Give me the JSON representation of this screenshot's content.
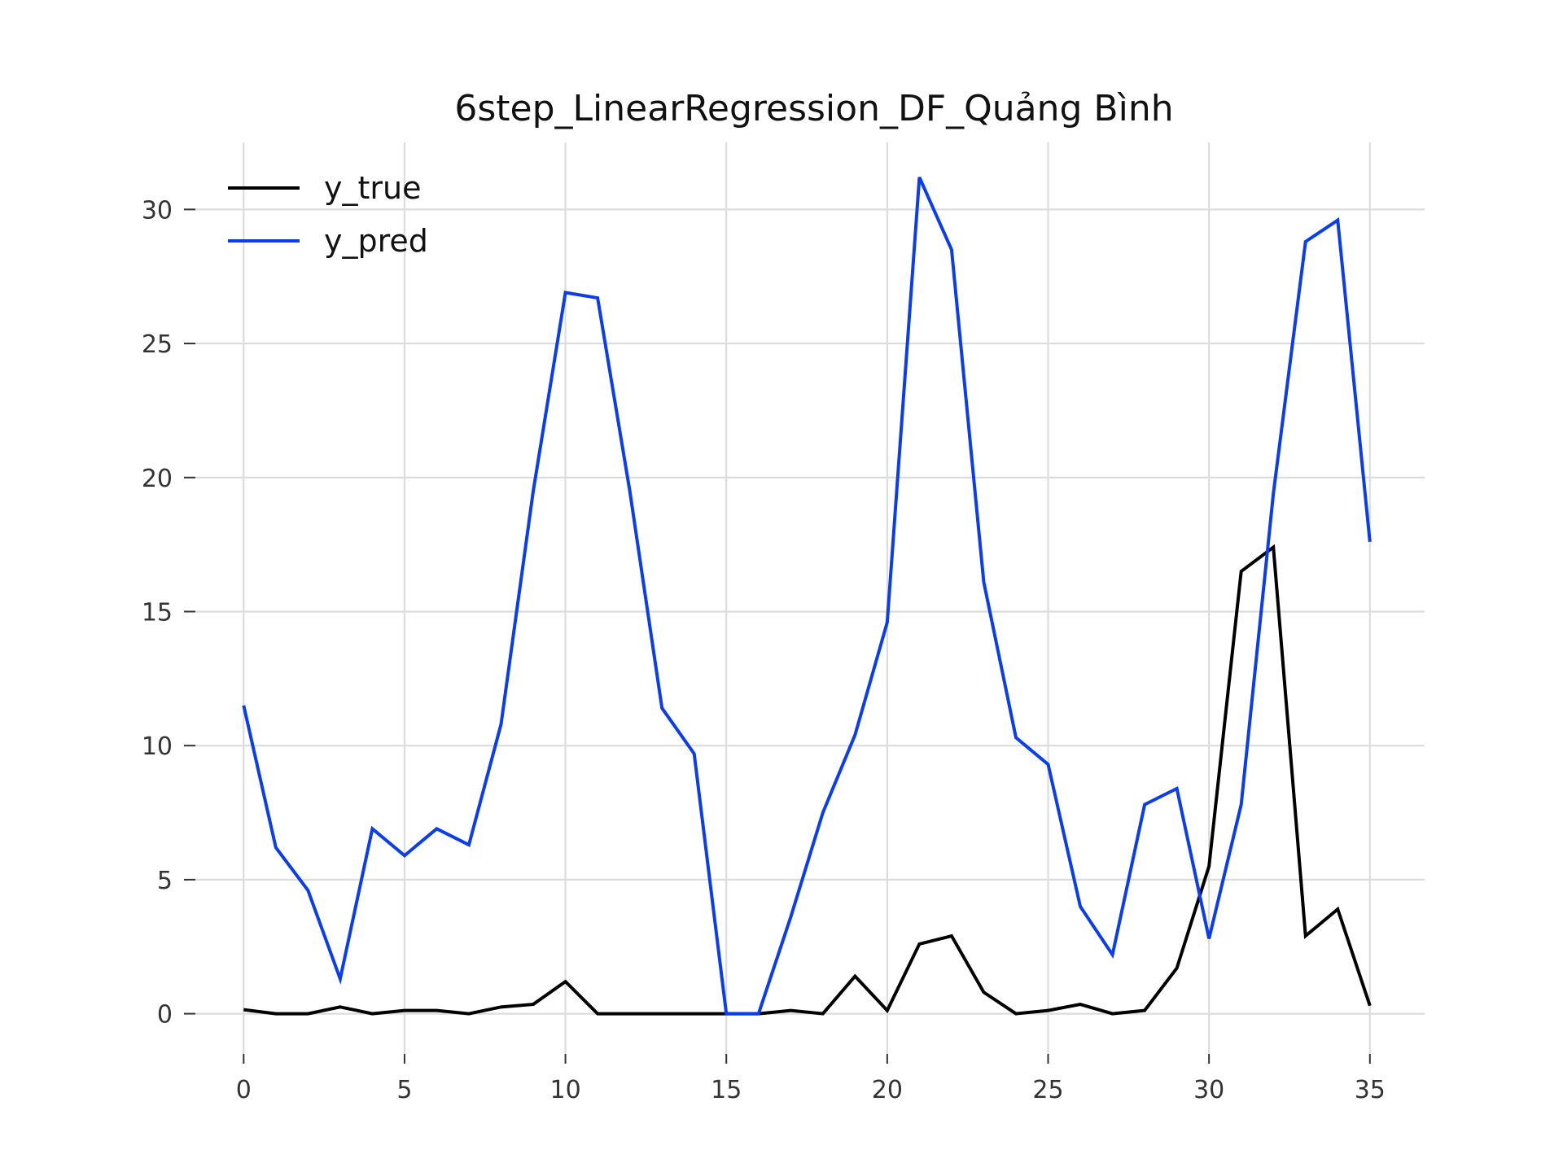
{
  "chart_data": {
    "type": "line",
    "title": "6step_LinearRegression_DF_Quảng Bình",
    "xlabel": "",
    "ylabel": "",
    "xlim": [
      -1.5,
      36.7
    ],
    "ylim": [
      -1.5,
      32.5
    ],
    "xticks": [
      0,
      5,
      10,
      15,
      20,
      25,
      30,
      35
    ],
    "yticks": [
      0,
      5,
      10,
      15,
      20,
      25,
      30
    ],
    "grid": true,
    "legend_position": "top-left",
    "x": [
      0,
      1,
      2,
      3,
      4,
      5,
      6,
      7,
      8,
      9,
      10,
      11,
      12,
      13,
      14,
      15,
      16,
      17,
      18,
      19,
      20,
      21,
      22,
      23,
      24,
      25,
      26,
      27,
      28,
      29,
      30,
      31,
      32,
      33,
      34,
      35
    ],
    "series": [
      {
        "name": "y_true",
        "color": "#000000",
        "values": [
          0.15,
          0.0,
          0.0,
          0.25,
          0.0,
          0.12,
          0.12,
          0.0,
          0.25,
          0.35,
          1.2,
          0.0,
          0.0,
          0.0,
          0.0,
          0.0,
          0.0,
          0.12,
          0.0,
          1.4,
          0.12,
          2.6,
          2.9,
          0.8,
          0.0,
          0.12,
          0.35,
          0.0,
          0.12,
          1.7,
          5.5,
          16.5,
          17.4,
          2.9,
          3.9,
          0.3
        ]
      },
      {
        "name": "y_pred",
        "color": "#0a3cf0",
        "values": [
          11.5,
          6.2,
          4.6,
          1.3,
          6.9,
          5.9,
          6.9,
          6.3,
          10.8,
          19.5,
          26.9,
          26.7,
          19.5,
          11.4,
          9.7,
          0.0,
          0.0,
          3.6,
          7.5,
          10.4,
          14.6,
          31.2,
          28.5,
          16.1,
          10.3,
          9.3,
          4.0,
          2.2,
          7.8,
          8.4,
          2.8,
          7.8,
          19.4,
          28.8,
          29.6,
          17.6
        ]
      }
    ]
  }
}
